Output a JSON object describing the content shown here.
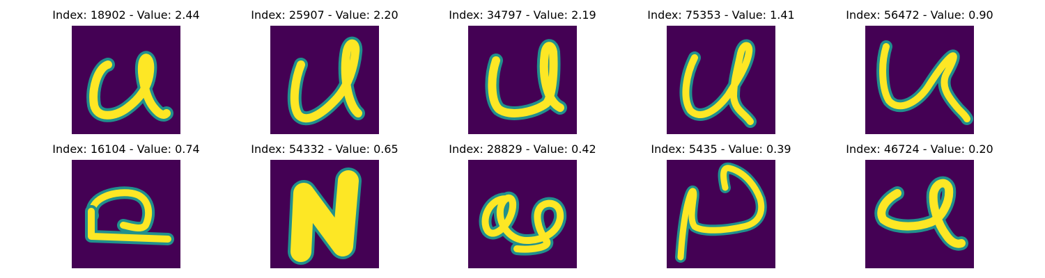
{
  "colors": {
    "background": "#440154",
    "stroke_edge": "#21908d",
    "stroke_core": "#fde725"
  },
  "panels": [
    {
      "title": "Index: 18902 - Value: 2.44"
    },
    {
      "title": "Index: 25907 - Value: 2.20"
    },
    {
      "title": "Index: 34797 - Value: 2.19"
    },
    {
      "title": "Index: 75353 - Value: 1.41"
    },
    {
      "title": "Index: 56472 - Value: 0.90"
    },
    {
      "title": "Index: 16104 - Value: 0.74"
    },
    {
      "title": "Index: 54332 - Value: 0.65"
    },
    {
      "title": "Index: 28829 - Value: 0.42"
    },
    {
      "title": "Index: 5435 - Value: 0.39"
    },
    {
      "title": "Index: 46724 - Value: 0.20"
    }
  ]
}
